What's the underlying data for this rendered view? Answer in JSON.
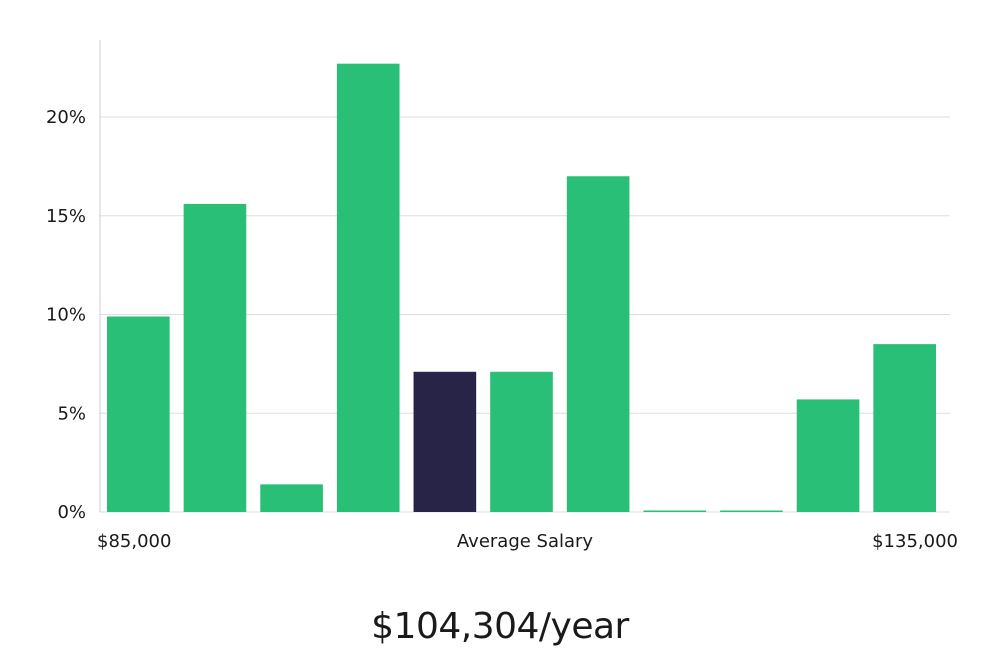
{
  "chart_data": {
    "type": "bar",
    "y_ticks": [
      "0%",
      "5%",
      "10%",
      "15%",
      "20%"
    ],
    "y_tick_values": [
      0,
      5,
      10,
      15,
      20
    ],
    "ylim": [
      0,
      24
    ],
    "x_labels": {
      "left": "$85,000",
      "center": "Average Salary",
      "right": "$135,000"
    },
    "values": [
      9.9,
      15.6,
      1.4,
      22.7,
      7.1,
      7.1,
      17.0,
      0.05,
      0.05,
      5.7,
      8.5
    ],
    "highlight_index": 4,
    "colors": {
      "bar": "#2abf76",
      "highlight": "#282447",
      "grid": "#dddddd",
      "axis": "#cccccc"
    },
    "grid": true
  },
  "salary": {
    "value": "$104,304/year"
  }
}
